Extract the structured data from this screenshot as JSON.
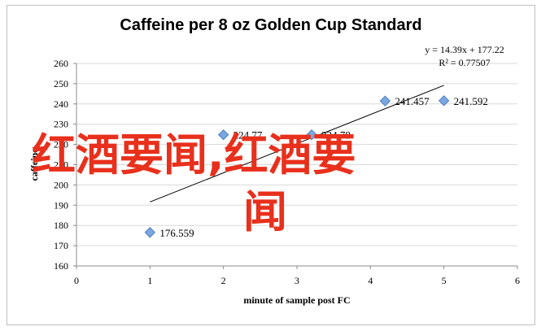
{
  "chart_data": {
    "type": "scatter",
    "title": "Caffeine per 8 oz Golden Cup Standard",
    "xlabel": "minute of sample post FC",
    "ylabel": "caffeine",
    "xlim": [
      0,
      6
    ],
    "ylim": [
      160,
      260
    ],
    "x_ticks": [
      "0",
      "1",
      "2",
      "3",
      "4",
      "5",
      "6"
    ],
    "y_ticks": [
      "160",
      "170",
      "180",
      "190",
      "200",
      "210",
      "220",
      "230",
      "240",
      "250",
      "260"
    ],
    "points": [
      {
        "x": 1,
        "y": 176.559,
        "label": "176.559"
      },
      {
        "x": 2,
        "y": 224.77,
        "label": "224.77"
      },
      {
        "x": 3.2,
        "y": 224.78,
        "label": "224.78"
      },
      {
        "x": 4.2,
        "y": 241.457,
        "label": "241.457"
      },
      {
        "x": 5,
        "y": 241.592,
        "label": "241.592"
      }
    ],
    "trendline": {
      "slope": 14.39,
      "intercept": 177.22,
      "x_range": [
        1,
        5
      ]
    },
    "equation": "y = 14.39x + 177.22",
    "r_squared": "R² = 0.77507",
    "grid": "horizontal",
    "marker_color": "#7aa7e0",
    "marker_edge_color": "#4f7fc0",
    "gridline_color": "#d9d9d9"
  },
  "watermark": {
    "line1": "红酒要闻,红酒要",
    "line2": "闻",
    "color": "#e8301c"
  }
}
